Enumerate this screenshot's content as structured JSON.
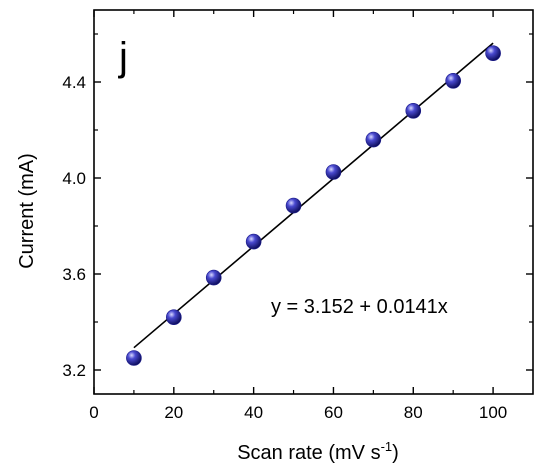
{
  "chart_data": {
    "type": "scatter",
    "panel_label": "j",
    "xlabel": {
      "main": "Scan rate (mV s",
      "sup": "-1",
      "end": ")"
    },
    "ylabel": "Current (mA)",
    "xlim": [
      0,
      110
    ],
    "ylim": [
      3.1,
      4.7
    ],
    "xticks": [
      0,
      20,
      40,
      60,
      80,
      100
    ],
    "xtick_labels": [
      "0",
      "20",
      "40",
      "60",
      "80",
      "100"
    ],
    "yticks": [
      3.2,
      3.6,
      4.0,
      4.4
    ],
    "ytick_labels": [
      "3.2",
      "3.6",
      "4.0",
      "4.4"
    ],
    "x_minor_step": 10,
    "y_minor_step": 0.2,
    "x": [
      10,
      20,
      30,
      40,
      50,
      60,
      70,
      80,
      90,
      100
    ],
    "y": [
      3.25,
      3.42,
      3.585,
      3.735,
      3.885,
      4.025,
      4.16,
      4.28,
      4.405,
      4.52
    ],
    "fit": {
      "intercept": 3.152,
      "slope": 0.0141,
      "x_range": [
        10,
        100
      ]
    },
    "annotation": "y = 3.152 + 0.0141x",
    "grid": false,
    "marker_color": "#1a1a8c",
    "line_color": "#000000"
  }
}
